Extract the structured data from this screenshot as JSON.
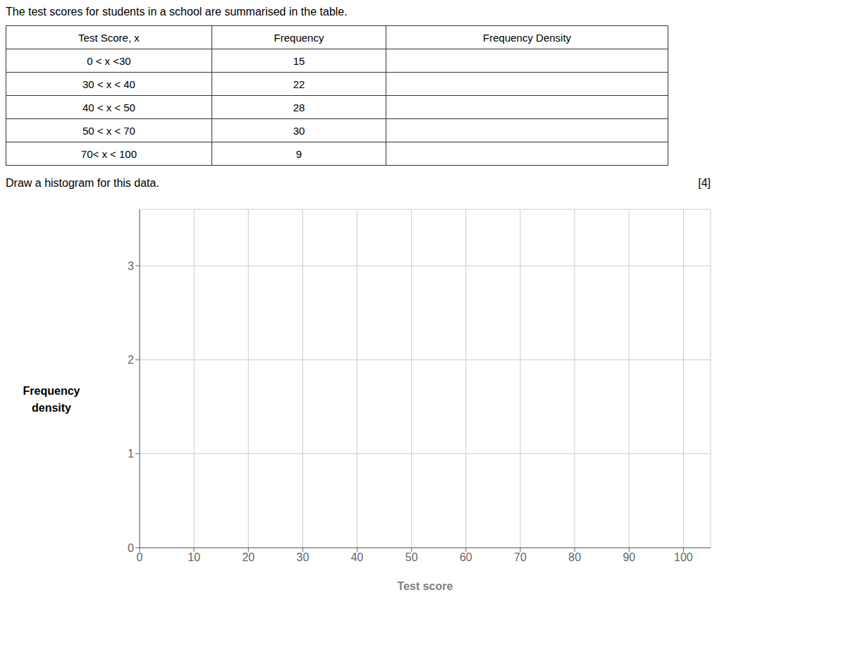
{
  "chart_data": [
    {
      "type": "table",
      "title": "The test scores for students in a school are summarised in the table.",
      "columns": [
        "Test Score, x",
        "Frequency",
        "Frequency Density"
      ],
      "rows": [
        [
          "0 < x <30",
          "15",
          null
        ],
        [
          "30 < x < 40",
          "22",
          null
        ],
        [
          "40 < x < 50",
          "28",
          null
        ],
        [
          "50 < x < 70",
          "30",
          null
        ],
        [
          "70< x < 100",
          "9",
          null
        ]
      ]
    },
    {
      "type": "histogram",
      "title": "Draw a histogram for this data.",
      "annotations": [
        "[4]"
      ],
      "xlabel": "Test score",
      "ylabel": "Frequency\ndensity",
      "xlim": [
        0,
        105
      ],
      "ylim": [
        0,
        3.6
      ],
      "xticks": [
        0,
        10,
        20,
        30,
        40,
        50,
        60,
        70,
        80,
        90,
        100
      ],
      "yticks": [
        0,
        1,
        2,
        3
      ],
      "grid": true
    }
  ]
}
